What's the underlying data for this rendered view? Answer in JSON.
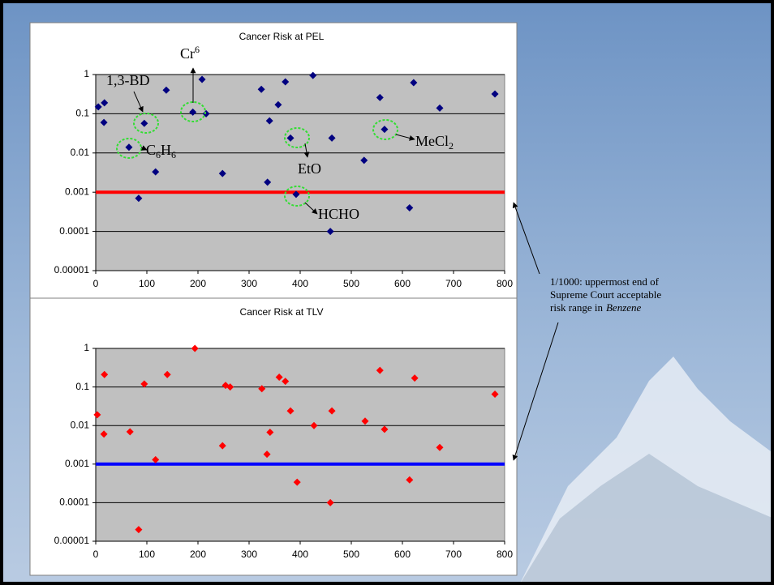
{
  "chart_data": [
    {
      "type": "scatter",
      "title": "Cancer Risk at PEL",
      "log_y": true,
      "grid": true,
      "color": "#000080",
      "marker": "diamond",
      "x": [
        5,
        17,
        16,
        95,
        65,
        117,
        84,
        138,
        190,
        208,
        216,
        248,
        324,
        336,
        340,
        357,
        371,
        381,
        392,
        425,
        459,
        462,
        525,
        556,
        565,
        614,
        622,
        673,
        781
      ],
      "values": [
        0.15,
        0.19,
        0.06,
        0.057,
        0.014,
        0.0033,
        0.0007,
        0.4,
        0.11,
        0.75,
        0.1,
        0.003,
        0.42,
        0.0018,
        0.066,
        0.17,
        0.65,
        0.024,
        0.00088,
        0.95,
        0.0001,
        0.024,
        0.0065,
        0.26,
        0.04,
        0.0004,
        0.62,
        0.14,
        0.32
      ],
      "xlim": [
        0,
        800
      ],
      "xticks": [
        0,
        100,
        200,
        300,
        400,
        500,
        600,
        700,
        800
      ],
      "ylim": [
        1e-05,
        1
      ],
      "yticks": [
        1e-05,
        0.0001,
        0.001,
        0.01,
        0.1,
        1
      ],
      "reference_line": {
        "value": 0.001,
        "color": "#ff0000"
      },
      "annotations": [
        {
          "text": "Cr",
          "sup": "6"
        },
        {
          "text": "1,3-BD"
        },
        {
          "text": "C",
          "sub": "6",
          "text2": "H",
          "sub2": "6"
        },
        {
          "text": "EtO"
        },
        {
          "text": "HCHO"
        },
        {
          "text": "MeCl",
          "sub": "2"
        }
      ]
    },
    {
      "type": "scatter",
      "title": "Cancer Risk at TLV",
      "log_y": true,
      "grid": true,
      "color": "#ff0000",
      "marker": "diamond",
      "x": [
        3,
        17,
        16,
        67,
        95,
        84,
        117,
        140,
        194,
        248,
        254,
        263,
        325,
        335,
        341,
        359,
        371,
        381,
        427,
        394,
        459,
        462,
        527,
        556,
        565,
        614,
        624,
        673,
        781
      ],
      "values": [
        0.019,
        0.21,
        0.006,
        0.0069,
        0.12,
        2e-05,
        0.0013,
        0.21,
        1,
        0.003,
        0.11,
        0.1,
        0.09,
        0.0018,
        0.0067,
        0.18,
        0.14,
        0.024,
        0.01,
        0.00034,
        0.0001,
        0.024,
        0.013,
        0.27,
        0.008,
        0.00039,
        0.17,
        0.0027,
        0.065
      ],
      "xlim": [
        0,
        800
      ],
      "xticks": [
        0,
        100,
        200,
        300,
        400,
        500,
        600,
        700,
        800
      ],
      "ylim": [
        1e-05,
        1
      ],
      "yticks": [
        1e-05,
        0.0001,
        0.001,
        0.01,
        0.1,
        1
      ],
      "reference_line": {
        "value": 0.001,
        "color": "#0000ff"
      }
    }
  ],
  "note": {
    "lines": [
      "1/1000: uppermost end of",
      "Supreme Court acceptable",
      "risk range in"
    ],
    "italic": "Benzene"
  }
}
